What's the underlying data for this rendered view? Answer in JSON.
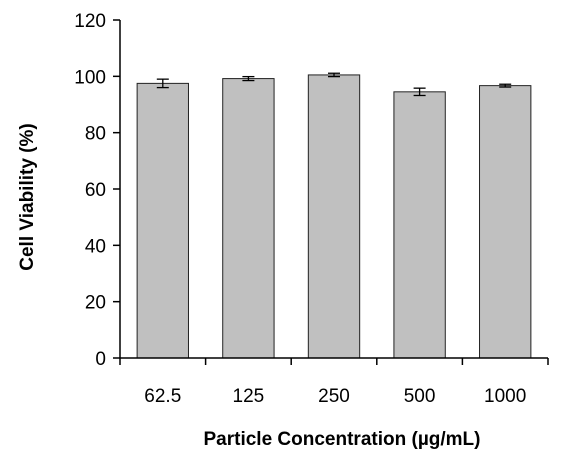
{
  "chart_data": {
    "type": "bar",
    "categories": [
      "62.5",
      "125",
      "250",
      "500",
      "1000"
    ],
    "values": [
      97.5,
      99.2,
      100.5,
      94.5,
      96.7
    ],
    "errors": [
      1.5,
      0.7,
      0.6,
      1.3,
      0.5
    ],
    "xlabel": "Particle Concentration (µg/mL)",
    "ylabel": "Cell  Viability (%)",
    "ylim": [
      0,
      120
    ],
    "yticks": [
      0,
      20,
      40,
      60,
      80,
      100,
      120
    ],
    "grid": false,
    "colors": {
      "bar": "#c0c0c0",
      "bar_edge": "#222222",
      "axis": "#000000"
    }
  }
}
